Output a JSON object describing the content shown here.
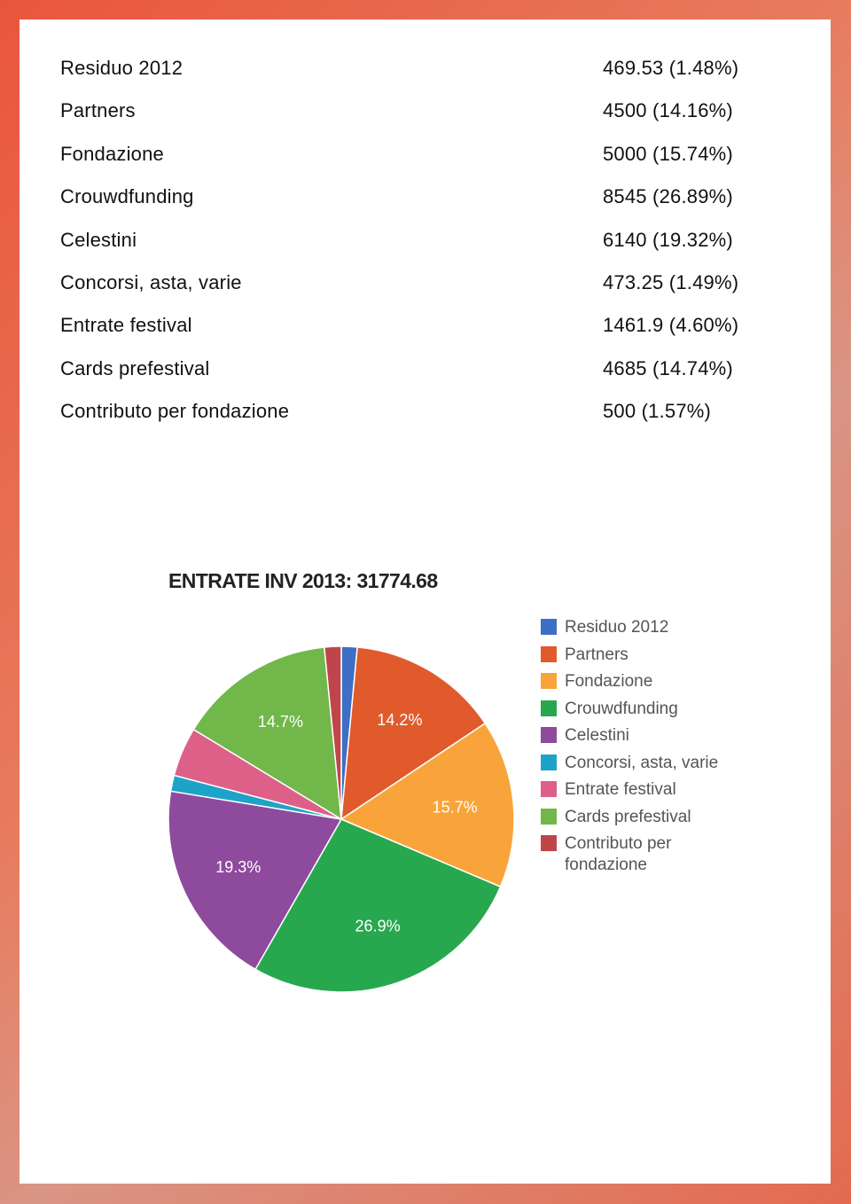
{
  "table": {
    "rows": [
      [
        "Residuo 2012",
        "469.53 (1.48%)"
      ],
      [
        "Partners",
        "4500 (14.16%)"
      ],
      [
        "Fondazione",
        "5000 (15.74%)"
      ],
      [
        "Crouwdfunding",
        "8545 (26.89%)"
      ],
      [
        "Celestini",
        "6140 (19.32%)"
      ],
      [
        "Concorsi, asta, varie",
        "473.25 (1.49%)"
      ],
      [
        "Entrate festival",
        "1461.9 (4.60%)"
      ],
      [
        "Cards prefestival",
        "4685 (14.74%)"
      ],
      [
        "Contributo per fondazione",
        "500 (1.57%)"
      ]
    ]
  },
  "chart_data": {
    "type": "pie",
    "title": "ENTRATE INV 2013: 31774.68",
    "categories": [
      "Residuo 2012",
      "Partners",
      "Fondazione",
      "Crouwdfunding",
      "Celestini",
      "Concorsi, asta, varie",
      "Entrate festival",
      "Cards prefestival",
      "Contributo per fondazione"
    ],
    "values": [
      1.48,
      14.16,
      15.74,
      26.89,
      19.32,
      1.49,
      4.6,
      14.74,
      1.57
    ],
    "value_labels": [
      null,
      "14.2%",
      "15.7%",
      "26.9%",
      "19.3%",
      null,
      null,
      "14.7%",
      null
    ],
    "colors": [
      "#3d6fc4",
      "#e05a2c",
      "#f9a43a",
      "#27a84f",
      "#8e4a9c",
      "#1ea3c8",
      "#dc6088",
      "#72b74a",
      "#c0454a"
    ],
    "legend": "right"
  }
}
